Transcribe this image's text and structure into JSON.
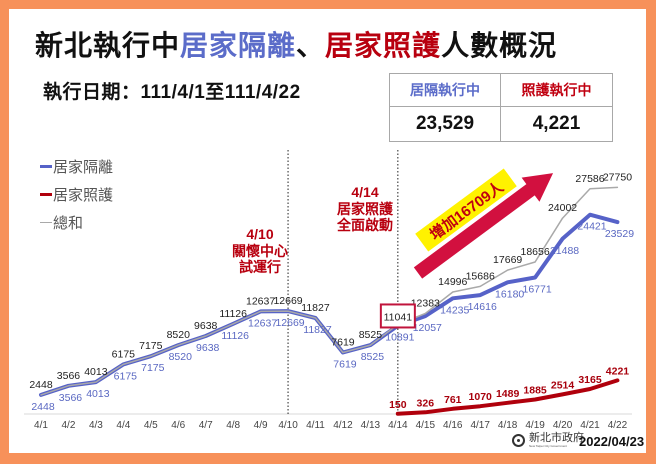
{
  "header": {
    "title_part1": "新北執行中",
    "title_blue": "居家隔離",
    "title_sep": "、",
    "title_red": "居家照護",
    "title_part2": "人數概況"
  },
  "period": {
    "label": "執行日期：",
    "value": "111/4/1至111/4/22"
  },
  "summary_table": {
    "headers": [
      "居隔執行中",
      "照護執行中"
    ],
    "values": [
      "23,529",
      "4,221"
    ]
  },
  "annotations": [
    {
      "date": "4/10",
      "lines": [
        "關懷中心",
        "試運行"
      ]
    },
    {
      "date": "4/14",
      "lines": [
        "居家照護",
        "全面啟動"
      ]
    }
  ],
  "highlight_box_value": "11041",
  "increase_label": "增加16709人",
  "footer": {
    "logo_text": "新北市政府",
    "logo_subtext": "New Taipei City Government",
    "date": "2022/04/23"
  },
  "colors": {
    "isolation_blue": "#5662c8",
    "care_red": "#b0000c",
    "total_gray": "#a9a9a9",
    "annotation_red": "#b8000f",
    "arrow_red": "#d2103f",
    "highlight_yellow": "#fff200",
    "frame_orange": "#f7915a"
  },
  "chart_data": {
    "type": "line",
    "title": "新北執行中居家隔離、居家照護人數概況",
    "xlabel": "",
    "ylabel": "",
    "categories": [
      "4/1",
      "4/2",
      "4/3",
      "4/4",
      "4/5",
      "4/6",
      "4/7",
      "4/8",
      "4/9",
      "4/10",
      "4/11",
      "4/12",
      "4/13",
      "4/14",
      "4/15",
      "4/16",
      "4/17",
      "4/18",
      "4/19",
      "4/20",
      "4/21",
      "4/22"
    ],
    "series": [
      {
        "name": "居家隔離",
        "color": "#5662c8",
        "values": [
          2448,
          3566,
          4013,
          6175,
          7175,
          8520,
          9638,
          11126,
          12637,
          12669,
          11827,
          7619,
          8525,
          10891,
          12057,
          14235,
          14616,
          16180,
          16771,
          21488,
          24421,
          23529
        ]
      },
      {
        "name": "居家照護",
        "color": "#b0000c",
        "values": [
          null,
          null,
          null,
          null,
          null,
          null,
          null,
          null,
          null,
          null,
          null,
          null,
          null,
          150,
          326,
          761,
          1070,
          1489,
          1885,
          2514,
          3165,
          4221
        ]
      },
      {
        "name": "總和",
        "color": "#a9a9a9",
        "values": [
          2448,
          3566,
          4013,
          6175,
          7175,
          8520,
          9638,
          11126,
          12637,
          12669,
          11827,
          7619,
          8525,
          11041,
          12383,
          14996,
          15686,
          17669,
          18656,
          24002,
          27586,
          27750
        ]
      }
    ],
    "vertical_markers": [
      {
        "x": "4/10",
        "label": "4/10 關懷中心 試運行"
      },
      {
        "x": "4/14",
        "label": "4/14 居家照護 全面啟動"
      }
    ],
    "annotations": [
      "增加16709人"
    ],
    "ylim": [
      0,
      30000
    ],
    "grid": false,
    "legend_position": "top-left"
  }
}
